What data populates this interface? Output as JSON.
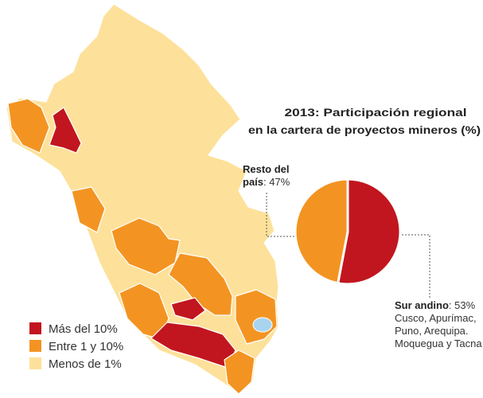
{
  "title_lines": [
    "2013: Participación regional",
    "en la cartera de proyectos mineros (%)"
  ],
  "chart_data": {
    "type": "pie",
    "slices": [
      {
        "name": "Sur andino",
        "value": 53,
        "value_label": "53%",
        "color": "#c1161f",
        "detail": "Cusco, Apurímac, Puno, Arequipa. Moquegua y Tacna"
      },
      {
        "name": "Resto del país",
        "value": 47,
        "value_label": "47%",
        "color": "#f39422"
      }
    ]
  },
  "legend": [
    {
      "label": "Más del 10%",
      "color": "#c1161f"
    },
    {
      "label": "Entre 1 y 10%",
      "color": "#f39422"
    },
    {
      "label": "Menos de 1%",
      "color": "#fde19a"
    }
  ]
}
